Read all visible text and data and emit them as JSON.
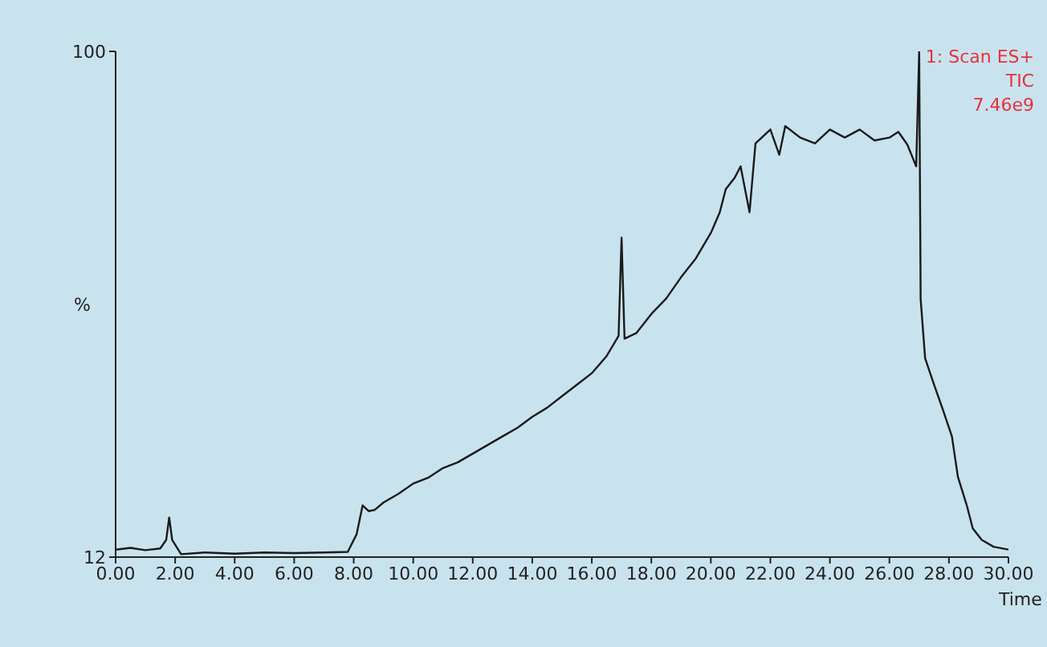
{
  "chart_data": {
    "type": "line",
    "xlabel": "Time",
    "ylabel": "%",
    "annotations": [
      "1: Scan ES+",
      "TIC",
      "7.46e9"
    ],
    "x": [
      0,
      0.5,
      1,
      1.5,
      1.7,
      1.8,
      1.9,
      2.2,
      3,
      4,
      5,
      6,
      7,
      7.8,
      8.1,
      8.3,
      8.5,
      8.7,
      9,
      9.5,
      10,
      10.5,
      11,
      11.5,
      12,
      12.5,
      13,
      13.5,
      14,
      14.5,
      15,
      15.5,
      16,
      16.5,
      16.9,
      17,
      17.1,
      17.5,
      18,
      18.5,
      19,
      19.5,
      20,
      20.3,
      20.5,
      20.8,
      21,
      21.3,
      21.5,
      22,
      22.3,
      22.5,
      23,
      23.5,
      24,
      24.5,
      25,
      25.5,
      26,
      26.3,
      26.6,
      26.9,
      27,
      27.05,
      27.2,
      27.5,
      27.8,
      28.1,
      28.3,
      28.6,
      28.8,
      29.1,
      29.5,
      30
    ],
    "series": [
      {
        "color": "#1a1a1a",
        "values": [
          13.3,
          13.6,
          13.2,
          13.5,
          15,
          18.9,
          15,
          12.5,
          12.8,
          12.6,
          12.8,
          12.7,
          12.8,
          12.9,
          16,
          21,
          20,
          20.2,
          21.5,
          23,
          24.8,
          25.8,
          27.5,
          28.5,
          30,
          31.5,
          33,
          34.5,
          36.4,
          38,
          40,
          42,
          44,
          47,
          50.5,
          67.6,
          50,
          51,
          54.3,
          57,
          60.7,
          64,
          68.4,
          72,
          76,
          78,
          80,
          72,
          84,
          86.4,
          82,
          87,
          85,
          84,
          86.4,
          85,
          86.4,
          84.5,
          85,
          86,
          83.8,
          80,
          100,
          56.9,
          46.6,
          42,
          37.6,
          33,
          26,
          21,
          17,
          15,
          13.8,
          13.3
        ]
      }
    ],
    "xlim": [
      0,
      30
    ],
    "ylim": [
      12,
      100
    ],
    "xticks": [
      {
        "value": 0,
        "label": "0.00"
      },
      {
        "value": 2,
        "label": "2.00"
      },
      {
        "value": 4,
        "label": "4.00"
      },
      {
        "value": 6,
        "label": "6.00"
      },
      {
        "value": 8,
        "label": "8.00"
      },
      {
        "value": 10,
        "label": "10.00"
      },
      {
        "value": 12,
        "label": "12.00"
      },
      {
        "value": 14,
        "label": "14.00"
      },
      {
        "value": 16,
        "label": "16.00"
      },
      {
        "value": 18,
        "label": "18.00"
      },
      {
        "value": 20,
        "label": "20.00"
      },
      {
        "value": 22,
        "label": "22.00"
      },
      {
        "value": 24,
        "label": "24.00"
      },
      {
        "value": 26,
        "label": "26.00"
      },
      {
        "value": 28,
        "label": "28.00"
      },
      {
        "value": 30,
        "label": "30.00"
      }
    ],
    "yticks": [
      12,
      100
    ],
    "marker": "none",
    "line_style": "solid"
  }
}
